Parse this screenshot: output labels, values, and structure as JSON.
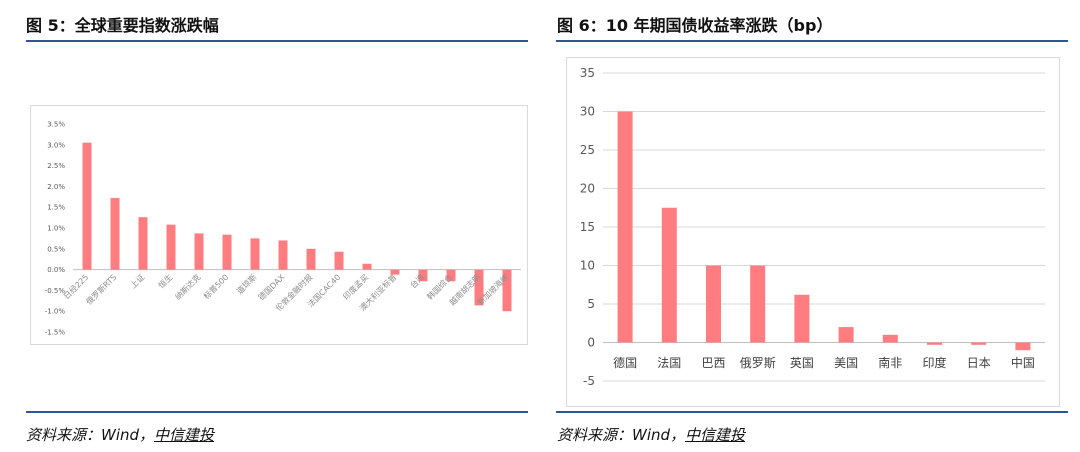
{
  "left": {
    "title": "图 5：全球重要指数涨跌幅",
    "source_prefix": "资料来源：Wind，",
    "source_brand": "中信建投"
  },
  "right": {
    "title": "图 6：10 年期国债收益率涨跌（bp）",
    "source_prefix": "资料来源：Wind，",
    "source_brand": "中信建投"
  },
  "colors": {
    "bar": "#ff7c80",
    "rule": "#2f5597",
    "grid": "#d9d9d9"
  },
  "chart_data": [
    {
      "type": "bar",
      "categories": [
        "日经225",
        "俄罗斯RTS",
        "上证",
        "恒生",
        "纳斯达克",
        "标普500",
        "道琼斯",
        "德国DAX",
        "伦敦金融时报",
        "法国CAC40",
        "印度孟买",
        "澳大利亚标普",
        "台湾",
        "韩国综合",
        "越南胡志明",
        "新加坡海峡"
      ],
      "values": [
        3.05,
        1.72,
        1.26,
        1.08,
        0.87,
        0.84,
        0.75,
        0.7,
        0.5,
        0.43,
        0.14,
        -0.12,
        -0.28,
        -0.28,
        -0.86,
        -1.0
      ],
      "yticks": [
        "3.5%",
        "3.0%",
        "2.5%",
        "2.0%",
        "1.5%",
        "1.0%",
        "0.5%",
        "0.0%",
        "-0.5%",
        "-1.0%",
        "-1.5%"
      ],
      "ylim": [
        -1.5,
        3.5
      ],
      "grid": false
    },
    {
      "type": "bar",
      "categories": [
        "德国",
        "法国",
        "巴西",
        "俄罗斯",
        "英国",
        "美国",
        "南非",
        "印度",
        "日本",
        "中国"
      ],
      "values": [
        30,
        17.5,
        10,
        10,
        6.2,
        2,
        1,
        -0.3,
        -0.3,
        -1
      ],
      "yticks": [
        "35",
        "30",
        "25",
        "20",
        "15",
        "10",
        "5",
        "0",
        "-5"
      ],
      "ylim": [
        -5,
        35
      ],
      "grid": true
    }
  ]
}
